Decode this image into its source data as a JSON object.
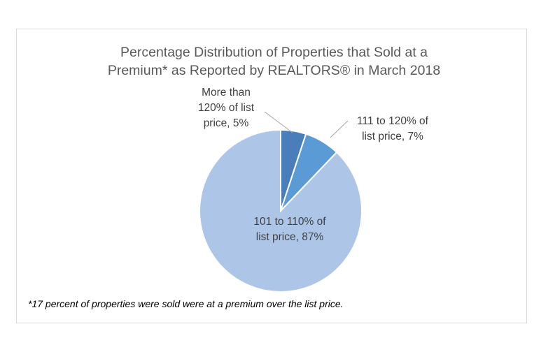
{
  "chart_data": {
    "type": "pie",
    "title_lines": [
      "Percentage Distribution of Properties that Sold at a",
      "Premium* as Reported by REALTORS® in March 2018"
    ],
    "slices": [
      {
        "label_lines": [
          "More than",
          "120% of list",
          "price, 5%"
        ],
        "value": 5,
        "color": "#4a7ebb"
      },
      {
        "label_lines": [
          "111 to 120% of",
          "list price, 7%"
        ],
        "value": 7,
        "color": "#5b9bd5"
      },
      {
        "label_lines": [
          "101 to 110% of",
          "list price, 87%"
        ],
        "value": 87,
        "color": "#adc6e8"
      }
    ],
    "footnote": "*17 percent of properties were sold were at a premium over the list price."
  }
}
